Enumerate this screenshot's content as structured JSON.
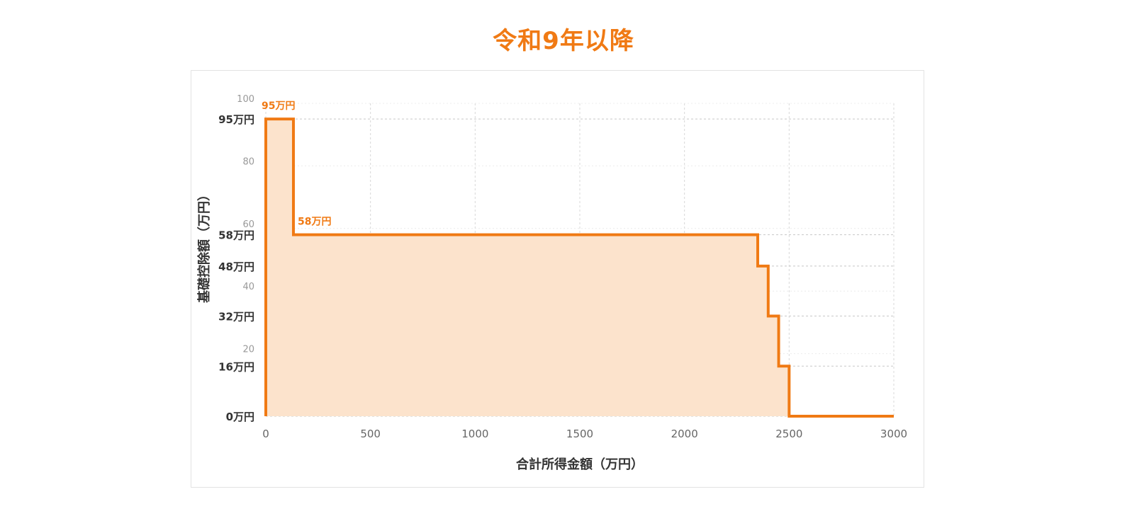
{
  "page": {
    "title": "令和9年以降"
  },
  "chart_data": {
    "type": "area",
    "step": true,
    "title": "令和9年以降",
    "xlabel": "合計所得金額（万円）",
    "ylabel": "基礎控除額（万円）",
    "xlim": [
      0,
      3000
    ],
    "ylim": [
      0,
      100
    ],
    "x_ticks": [
      0,
      500,
      1000,
      1500,
      2000,
      2500,
      3000
    ],
    "y_ticks_minor": [
      20,
      40,
      60,
      80,
      100
    ],
    "y_ticks_major": [
      {
        "value": 95,
        "label": "95万円"
      },
      {
        "value": 58,
        "label": "58万円"
      },
      {
        "value": 48,
        "label": "48万円"
      },
      {
        "value": 32,
        "label": "32万円"
      },
      {
        "value": 16,
        "label": "16万円"
      },
      {
        "value": 0,
        "label": "0万円"
      }
    ],
    "series": [
      {
        "x": [
          0,
          0,
          132,
          132,
          2350,
          2350,
          2400,
          2400,
          2450,
          2450,
          2500,
          2500,
          3000
        ],
        "y": [
          0,
          95,
          95,
          58,
          58,
          48,
          48,
          32,
          32,
          16,
          16,
          0,
          0
        ]
      }
    ],
    "annotations": [
      {
        "x": 0,
        "y": 95,
        "text": "95万円"
      },
      {
        "x": 132,
        "y": 58,
        "text": "58万円"
      }
    ],
    "grid": true,
    "line_color": "#f07a14",
    "fill_color": "#fce3cc"
  }
}
